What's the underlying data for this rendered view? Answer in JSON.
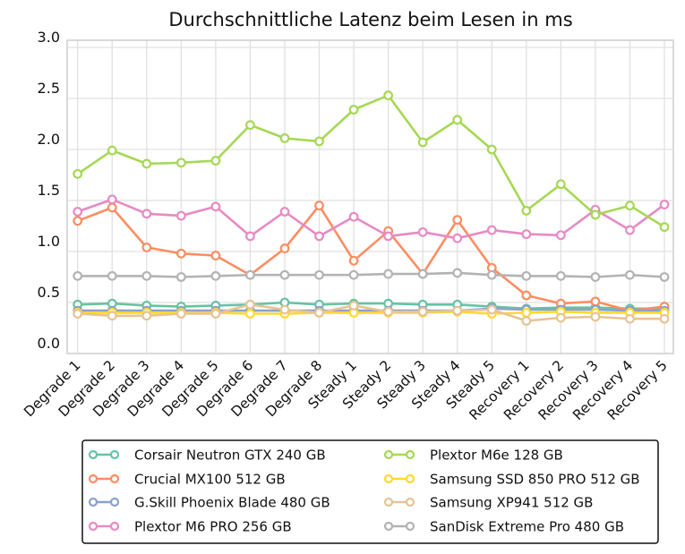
{
  "chart_data": {
    "type": "line",
    "title": "Durchschnittliche Latenz beim Lesen in ms",
    "xlabel": "",
    "ylabel": "",
    "ylim": [
      0,
      3.0
    ],
    "yticks": [
      "0.0",
      "0.5",
      "1.0",
      "1.5",
      "2.0",
      "2.5",
      "3.0"
    ],
    "ytick_values": [
      0,
      0.5,
      1.0,
      1.5,
      2.0,
      2.5,
      3.0
    ],
    "grid": true,
    "legend_position": "bottom",
    "categories": [
      "Degrade 1",
      "Degrade 2",
      "Degrade 3",
      "Degrade 4",
      "Degrade 5",
      "Degrade 6",
      "Degrade 7",
      "Degrade 8",
      "Steady 1",
      "Steady 2",
      "Steady 3",
      "Steady 4",
      "Steady 5",
      "Recovery 1",
      "Recovery 2",
      "Recovery 3",
      "Recovery 4",
      "Recovery 5"
    ],
    "series": [
      {
        "name": "Corsair Neutron GTX 240 GB",
        "color": "#66c2a5",
        "values": [
          0.48,
          0.49,
          0.47,
          0.46,
          0.47,
          0.48,
          0.5,
          0.48,
          0.49,
          0.49,
          0.48,
          0.48,
          0.46,
          0.44,
          0.45,
          0.45,
          0.44,
          0.44
        ]
      },
      {
        "name": "Crucial MX100 512 GB",
        "color": "#fc8d62",
        "values": [
          1.3,
          1.43,
          1.04,
          0.98,
          0.96,
          0.77,
          1.03,
          1.45,
          0.91,
          1.2,
          0.78,
          1.31,
          0.84,
          0.57,
          0.49,
          0.51,
          0.42,
          0.46
        ]
      },
      {
        "name": "G.Skill Phoenix Blade 480 GB",
        "color": "#8da0cb",
        "values": [
          0.42,
          0.42,
          0.42,
          0.42,
          0.42,
          0.42,
          0.42,
          0.42,
          0.42,
          0.42,
          0.42,
          0.42,
          0.44,
          0.43,
          0.43,
          0.43,
          0.42,
          0.42
        ]
      },
      {
        "name": "Plextor M6 PRO 256 GB",
        "color": "#e78ac3",
        "values": [
          1.39,
          1.51,
          1.37,
          1.35,
          1.44,
          1.15,
          1.39,
          1.15,
          1.34,
          1.15,
          1.19,
          1.13,
          1.21,
          1.17,
          1.16,
          1.41,
          1.21,
          1.46
        ]
      },
      {
        "name": "Plextor M6e 128 GB",
        "color": "#a6d854",
        "values": [
          1.76,
          1.99,
          1.86,
          1.87,
          1.89,
          2.24,
          2.11,
          2.08,
          2.39,
          2.53,
          2.07,
          2.29,
          2.0,
          1.4,
          1.66,
          1.36,
          1.45,
          1.24
        ]
      },
      {
        "name": "Samsung SSD 850 PRO 512 GB",
        "color": "#ffd92f",
        "values": [
          0.4,
          0.4,
          0.4,
          0.4,
          0.4,
          0.39,
          0.39,
          0.4,
          0.4,
          0.4,
          0.4,
          0.41,
          0.39,
          0.4,
          0.41,
          0.4,
          0.4,
          0.4
        ]
      },
      {
        "name": "Samsung XP941 512 GB",
        "color": "#e5c494",
        "values": [
          0.39,
          0.37,
          0.37,
          0.39,
          0.39,
          0.48,
          0.43,
          0.4,
          0.47,
          0.41,
          0.41,
          0.42,
          0.43,
          0.32,
          0.35,
          0.36,
          0.34,
          0.34
        ]
      },
      {
        "name": "SanDisk Extreme Pro 480 GB",
        "color": "#b3b3b3",
        "values": [
          0.76,
          0.76,
          0.76,
          0.75,
          0.76,
          0.77,
          0.77,
          0.77,
          0.77,
          0.78,
          0.78,
          0.79,
          0.77,
          0.76,
          0.76,
          0.75,
          0.77,
          0.75
        ]
      }
    ],
    "legend_columns": [
      [
        0,
        1,
        2,
        3
      ],
      [
        4,
        5,
        6,
        7
      ]
    ]
  }
}
